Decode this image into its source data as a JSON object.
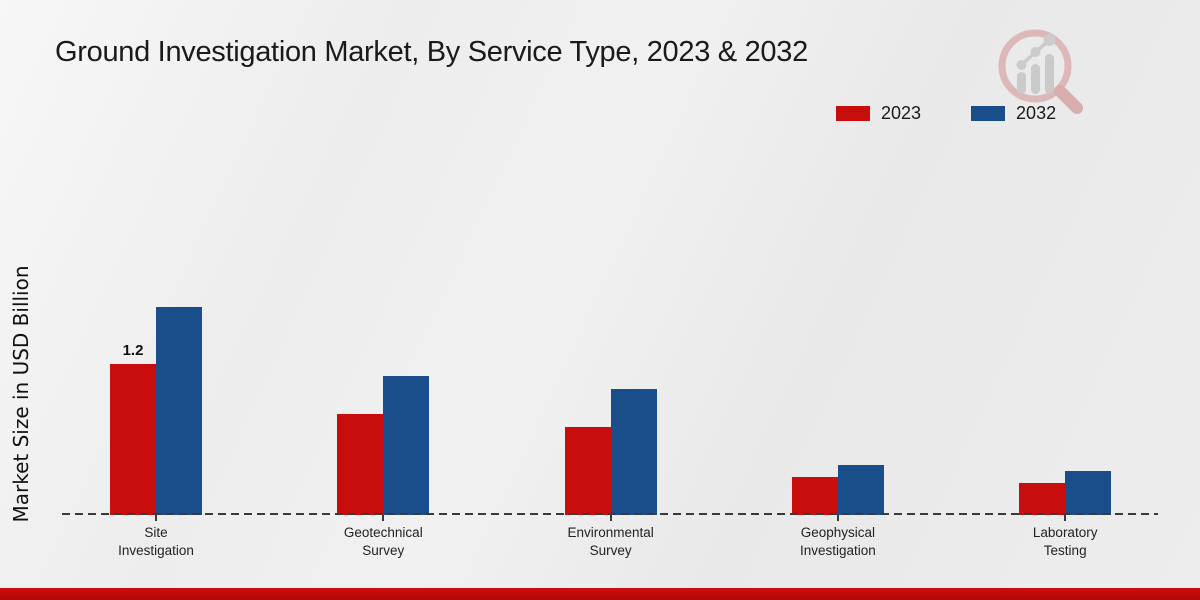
{
  "chart_data": {
    "type": "bar",
    "title": "Ground Investigation Market, By Service Type, 2023 & 2032",
    "ylabel": "Market Size in USD Billion",
    "xlabel": "",
    "categories": [
      "Site Investigation",
      "Geotechnical Survey",
      "Environmental Survey",
      "Geophysical Investigation",
      "Laboratory Testing"
    ],
    "series": [
      {
        "name": "2023",
        "color": "#c80d0d",
        "values": [
          1.2,
          0.8,
          0.7,
          0.3,
          0.25
        ]
      },
      {
        "name": "2032",
        "color": "#1a4e8a",
        "values": [
          1.65,
          1.1,
          1.0,
          0.4,
          0.35
        ]
      }
    ],
    "annotations": [
      {
        "text": "1.2",
        "series_index": 0,
        "category_index": 0
      }
    ],
    "legend": {
      "position": "top-right",
      "entries": [
        "2023",
        "2032"
      ]
    },
    "axis": {
      "baseline_style": "dashed",
      "gridlines": false,
      "y_ticks_visible": false,
      "ylim": [
        0,
        1.8
      ]
    }
  },
  "branding": {
    "logo_icon": "magnifier-bar-chart-logo",
    "footer_bar_color": "#bf0a0a"
  },
  "colors": {
    "series_2023": "#c80d0d",
    "series_2032": "#1a4e8a",
    "baseline": "#3a3a3a",
    "title_text": "#1a1a1a",
    "background": "#ededed"
  }
}
